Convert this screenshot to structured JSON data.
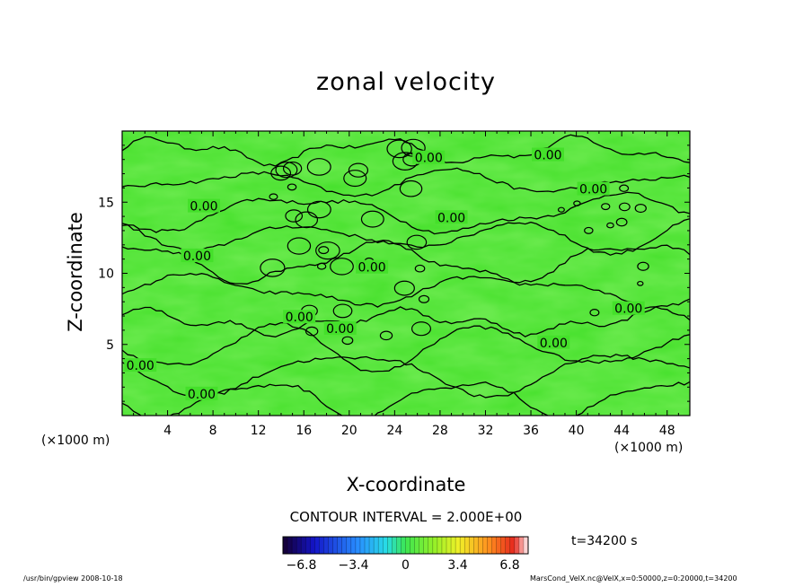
{
  "chart_data": {
    "type": "heatmap",
    "title": "zonal velocity",
    "xlabel": "X-coordinate",
    "ylabel": "Z-coordinate",
    "x_unit": "(×1000 m)",
    "xlim": [
      0,
      50
    ],
    "ylim": [
      0,
      20
    ],
    "x_ticks": [
      4,
      8,
      12,
      16,
      20,
      24,
      28,
      32,
      36,
      40,
      44,
      48
    ],
    "y_ticks": [
      5,
      10,
      15
    ],
    "contour_interval_label": "CONTOUR INTERVAL = 2.000E+00",
    "contour_labels": [
      {
        "text": "0.00",
        "x": 27.0,
        "y": 18.0
      },
      {
        "text": "0.00",
        "x": 37.5,
        "y": 18.2
      },
      {
        "text": "0.00",
        "x": 41.5,
        "y": 15.8
      },
      {
        "text": "0.00",
        "x": 7.2,
        "y": 14.6
      },
      {
        "text": "0.00",
        "x": 29.0,
        "y": 13.8
      },
      {
        "text": "0.00",
        "x": 6.6,
        "y": 11.1
      },
      {
        "text": "0.00",
        "x": 22.0,
        "y": 10.3
      },
      {
        "text": "0.00",
        "x": 44.6,
        "y": 7.4
      },
      {
        "text": "0.00",
        "x": 15.6,
        "y": 6.8
      },
      {
        "text": "0.00",
        "x": 19.2,
        "y": 6.0
      },
      {
        "text": "0.00",
        "x": 38.0,
        "y": 5.0
      },
      {
        "text": "0.00",
        "x": 1.6,
        "y": 3.4
      },
      {
        "text": "0.00",
        "x": 7.0,
        "y": 1.4
      }
    ],
    "colorbar": {
      "min": -8.0,
      "max": 8.0,
      "tick_labels": [
        "-6.8",
        "-3.4",
        "0",
        "3.4",
        "6.8"
      ],
      "tick_values": [
        -6.8,
        -3.4,
        0,
        3.4,
        6.8
      ]
    },
    "time_label": "t=34200 s",
    "legend": "colorbar-bottom"
  },
  "footer": {
    "left": "/usr/bin/gpview   2008-10-18",
    "right": "MarsCond_VelX.nc@VelX,x=0:50000,z=0:20000,t=34200"
  },
  "colors": {
    "field": "#44e02a",
    "field_light": "#6ff03a",
    "field_dark": "#36cc24",
    "contour": "#000000"
  }
}
